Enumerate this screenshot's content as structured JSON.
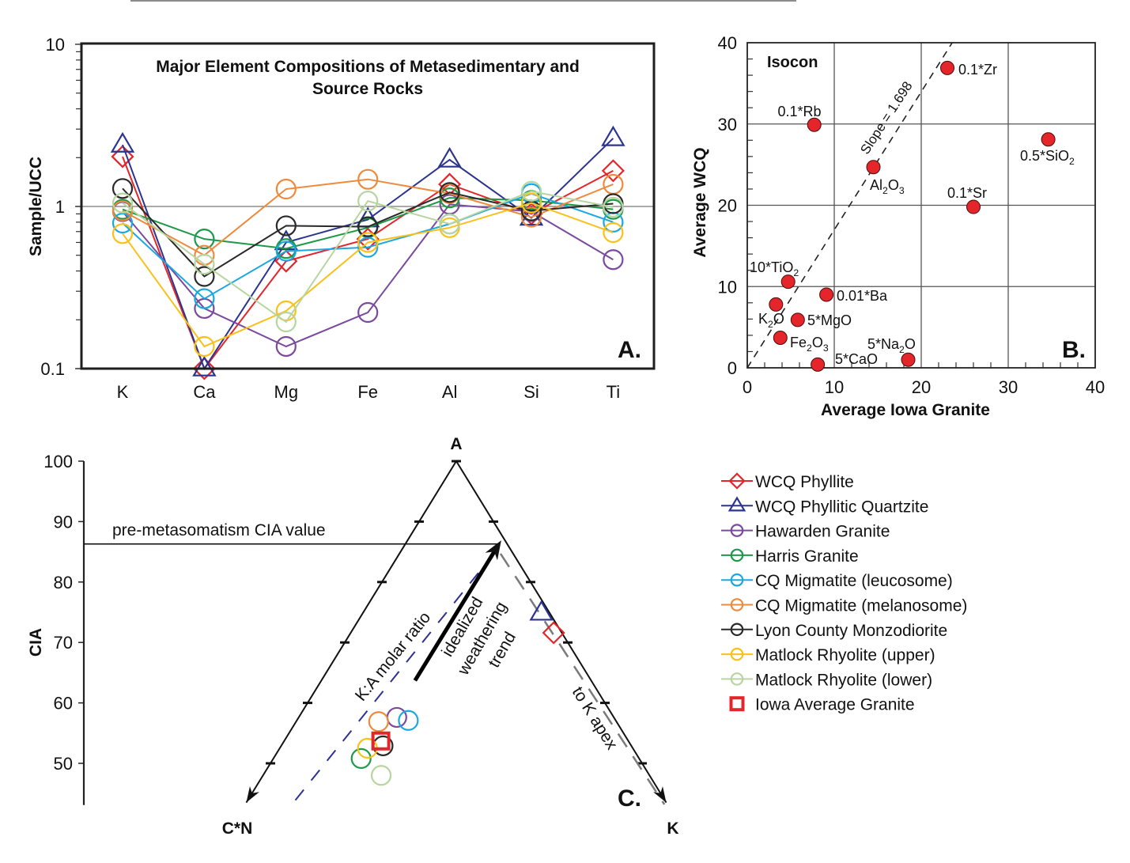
{
  "legend": [
    {
      "label": "WCQ Phyllite",
      "color": "#e4262b",
      "marker": "diamond"
    },
    {
      "label": "WCQ Phyllitic Quartzite",
      "color": "#2b3590",
      "marker": "triangle"
    },
    {
      "label": "Hawarden Granite",
      "color": "#7b4a9e",
      "marker": "circle"
    },
    {
      "label": "Harris Granite",
      "color": "#1d9a48",
      "marker": "circle"
    },
    {
      "label": "CQ Migmatite (leucosome)",
      "color": "#1aa8e0",
      "marker": "circle"
    },
    {
      "label": "CQ Migmatite (melanosome)",
      "color": "#ee8a3c",
      "marker": "circle"
    },
    {
      "label": "Lyon County Monzodiorite",
      "color": "#2a2a2a",
      "marker": "circle"
    },
    {
      "label": "Matlock Rhyolite (upper)",
      "color": "#f9c11a",
      "marker": "circle"
    },
    {
      "label": "Matlock Rhyolite (lower)",
      "color": "#b8d5a0",
      "marker": "circle"
    },
    {
      "label": "Iowa Average Granite",
      "color": "#e4262b",
      "marker": "square"
    }
  ],
  "chart_data": [
    {
      "panel_label": "A.",
      "type": "line",
      "title": [
        "Major Element Compositions of Metasedimentary and",
        "Source Rocks"
      ],
      "xlabel": "",
      "ylabel": "Sample/UCC",
      "yscale": "log",
      "ylim": [
        0.1,
        10
      ],
      "yticks": [
        {
          "value": 0.1,
          "label": "0.1"
        },
        {
          "value": 1,
          "label": "1"
        },
        {
          "value": 10,
          "label": "10"
        }
      ],
      "reference_line": 1,
      "grid": false,
      "categories": [
        "K",
        "Ca",
        "Mg",
        "Fe",
        "Al",
        "Si",
        "Ti"
      ],
      "series": [
        {
          "name": "WCQ Phyllite",
          "values": [
            2.03,
            0.1,
            0.46,
            0.63,
            1.37,
            0.9,
            1.66
          ]
        },
        {
          "name": "WCQ Phyllitic Quartzite",
          "values": [
            2.4,
            0.1,
            0.6,
            0.83,
            1.94,
            0.85,
            2.63
          ]
        },
        {
          "name": "Hawarden Granite",
          "values": [
            0.93,
            0.235,
            0.137,
            0.222,
            1.03,
            0.93,
            0.47
          ]
        },
        {
          "name": "Harris Granite",
          "values": [
            0.96,
            0.63,
            0.55,
            0.74,
            1.13,
            1.09,
            0.96
          ]
        },
        {
          "name": "CQ Migmatite (leucosome)",
          "values": [
            0.79,
            0.27,
            0.53,
            0.56,
            0.78,
            1.2,
            0.8
          ]
        },
        {
          "name": "CQ Migmatite (melanosome)",
          "values": [
            0.94,
            0.5,
            1.28,
            1.47,
            1.2,
            0.86,
            1.37
          ]
        },
        {
          "name": "Lyon County Monzodiorite",
          "values": [
            1.29,
            0.37,
            0.76,
            0.75,
            1.22,
            0.94,
            1.04
          ]
        },
        {
          "name": "Matlock Rhyolite (upper)",
          "values": [
            0.68,
            0.137,
            0.227,
            0.6,
            0.74,
            1.05,
            0.69
          ]
        },
        {
          "name": "Matlock Rhyolite (lower)",
          "values": [
            1.05,
            0.44,
            0.194,
            1.08,
            0.78,
            1.24,
            0.99
          ]
        }
      ]
    },
    {
      "panel_label": "B.",
      "type": "scatter",
      "title": "Isocon",
      "xlabel": "Average Iowa Granite",
      "ylabel": "Average WCQ",
      "xlim": [
        0,
        40
      ],
      "ylim": [
        0,
        40
      ],
      "xticks": [
        0,
        10,
        20,
        30,
        40
      ],
      "yticks": [
        0,
        10,
        20,
        30,
        40
      ],
      "grid": true,
      "marker_color": "#e4262b",
      "points": [
        {
          "label": "0.1*Zr",
          "x": 23.0,
          "y": 36.9
        },
        {
          "label": "0.1*Rb",
          "x": 7.7,
          "y": 29.9
        },
        {
          "label": "Al₂O₃",
          "x": 14.5,
          "y": 24.7
        },
        {
          "label": "0.5*SiO₂",
          "x": 34.6,
          "y": 28.1
        },
        {
          "label": "0.1*Sr",
          "x": 26.0,
          "y": 19.8
        },
        {
          "label": "10*TiO₂",
          "x": 4.7,
          "y": 10.6
        },
        {
          "label": "0.01*Ba",
          "x": 9.1,
          "y": 9.0
        },
        {
          "label": "K₂O",
          "x": 3.3,
          "y": 7.8
        },
        {
          "label": "5*MgO",
          "x": 5.8,
          "y": 5.9
        },
        {
          "label": "Fe₂O₃",
          "x": 3.8,
          "y": 3.7
        },
        {
          "label": "5*CaO",
          "x": 8.1,
          "y": 0.4
        },
        {
          "label": "5*Na₂O",
          "x": 18.5,
          "y": 1.0
        }
      ],
      "isocon": {
        "slope": 1.698,
        "label": "Slope = 1.698",
        "style": "dashed"
      }
    },
    {
      "panel_label": "C.",
      "type": "scatter",
      "projection": "ternary",
      "vertices": {
        "top": "A",
        "left": "C*N",
        "right": "K"
      },
      "ylabel": "CIA",
      "ylim": [
        43.1,
        100
      ],
      "yticks": [
        100,
        90,
        80,
        70,
        60,
        50
      ],
      "points": [
        {
          "series": "WCQ Phyllite",
          "A": 71.6,
          "CN": 1.1,
          "K": 27.3
        },
        {
          "series": "WCQ Phyllitic Quartzite",
          "A": 74.9,
          "CN": 1.1,
          "K": 24.0
        },
        {
          "series": "Hawarden Granite",
          "A": 57.6,
          "CN": 29.2,
          "K": 13.2
        },
        {
          "series": "Harris Granite",
          "A": 50.8,
          "CN": 37.4,
          "K": 11.8
        },
        {
          "series": "CQ Migmatite (leucosome)",
          "A": 57.1,
          "CN": 27.9,
          "K": 15.0
        },
        {
          "series": "CQ Migmatite (melanosome)",
          "A": 56.9,
          "CN": 32.0,
          "K": 11.1
        },
        {
          "series": "Lyon County Monzodiorite",
          "A": 52.9,
          "CN": 33.4,
          "K": 13.7
        },
        {
          "series": "Matlock Rhyolite (upper)",
          "A": 52.5,
          "CN": 35.7,
          "K": 11.8
        },
        {
          "series": "Matlock Rhyolite (lower)",
          "A": 48.0,
          "CN": 36.1,
          "K": 15.9
        },
        {
          "series": "Iowa Average Granite",
          "A": 53.7,
          "CN": 33.3,
          "K": 13.0
        }
      ],
      "annotations": {
        "pre_metasomatism": {
          "label": "pre-metasomatism CIA value",
          "cia": 86.3
        },
        "ka_ratio": {
          "label": "K:A molar ratio",
          "from": {
            "A": 43.9,
            "CN": 49.7,
            "K": 6.4
          },
          "to": {
            "A": 84.0,
            "CN": 3.4,
            "K": 12.6
          }
        },
        "weathering_trend": {
          "label": [
            "idealized",
            "weathering",
            "trend"
          ],
          "from": {
            "A": 63.7,
            "CN": 23.7,
            "K": 12.6
          },
          "to": {
            "A": 86.9,
            "CN": 0.5,
            "K": 12.6
          }
        },
        "to_k_apex": {
          "label": "to K apex",
          "from": {
            "A": 84.7,
            "CN": 1.7,
            "K": 13.6
          },
          "to": {
            "A": 43.2,
            "CN": 0.4,
            "K": 56.4
          }
        }
      }
    }
  ]
}
